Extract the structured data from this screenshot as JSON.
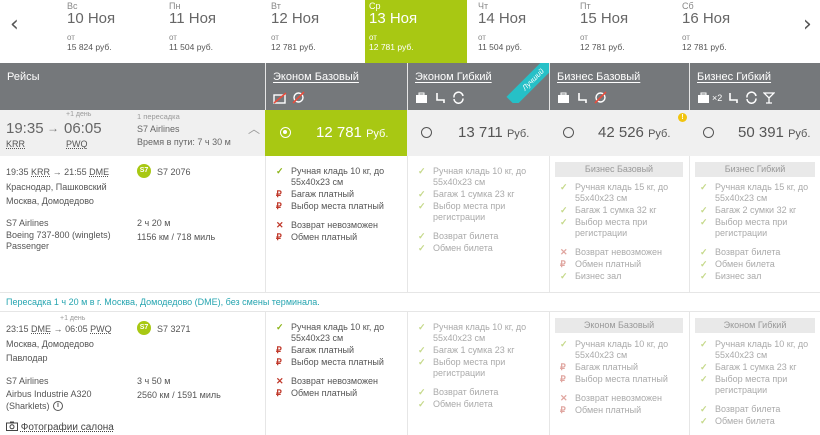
{
  "date_nav": {
    "days": [
      {
        "weekday": "Вс",
        "date": "10 Ноя",
        "from": "от",
        "price": "15 824 руб."
      },
      {
        "weekday": "Пн",
        "date": "11 Ноя",
        "from": "от",
        "price": "11 504 руб."
      },
      {
        "weekday": "Вт",
        "date": "12 Ноя",
        "from": "от",
        "price": "12 781 руб."
      },
      {
        "weekday": "Ср",
        "date": "13 Ноя",
        "from": "от",
        "price": "12 781 руб.",
        "selected": true
      },
      {
        "weekday": "Чт",
        "date": "14 Ноя",
        "from": "от",
        "price": "11 504 руб."
      },
      {
        "weekday": "Пт",
        "date": "15 Ноя",
        "from": "от",
        "price": "12 781 руб."
      },
      {
        "weekday": "Сб",
        "date": "16 Ноя",
        "from": "от",
        "price": "12 781 руб."
      }
    ],
    "prev_icon": "chevron-left-icon",
    "next_icon": "chevron-right-icon"
  },
  "header": {
    "flights": "Рейсы",
    "fares": [
      "Эконом Базовый",
      "Эконом Гибкий",
      "Бизнес Базовый",
      "Бизнес Гибкий"
    ],
    "best_badge": "Лучший",
    "baggage_count": "×2"
  },
  "flight": {
    "dep_time": "19:35",
    "arr_time": "06:05",
    "next_day": "+1 день",
    "dep_code": "KRR",
    "arr_code": "PWQ",
    "stops": "1 пересадка",
    "airline": "S7 Airlines",
    "total_duration": "Время в пути: 7 ч 30 м",
    "total_duration_short": "7 ч 30 м",
    "prices": [
      {
        "value": "12 781",
        "currency": "Руб."
      },
      {
        "value": "13 711",
        "currency": "Руб."
      },
      {
        "value": "42 526",
        "currency": "Руб."
      },
      {
        "value": "50 391",
        "currency": "Руб."
      }
    ],
    "segments": [
      {
        "dep_time": "19:35",
        "dep_code": "KRR",
        "arr_time": "21:55",
        "arr_code": "DME",
        "next_day": "",
        "flight_no": "S7 2076",
        "dep_city": "Краснодар, Пашковский",
        "arr_city": "Москва, Домодедово",
        "airline": "S7 Airlines",
        "aircraft": "Boeing 737-800 (winglets) Passenger",
        "duration": "2 ч 20 м",
        "distance": "1156 км / 718 миль"
      },
      {
        "dep_time": "23:15",
        "dep_code": "DME",
        "arr_time": "06:05",
        "arr_code": "PWQ",
        "next_day": "+1 день",
        "flight_no": "S7 3271",
        "dep_city": "Москва, Домодедово",
        "arr_city": "Павлодар",
        "airline": "S7 Airlines",
        "aircraft": "Airbus Industrie A320 (Sharklets)",
        "duration": "3 ч 50 м",
        "distance": "2560 км / 1591 миль"
      }
    ],
    "transfer_note": "Пересадка 1 ч 20 м в г. Москва, Домодедово (DME), без смены терминала.",
    "cabin_photos": "Фотографии салона"
  },
  "features": {
    "eco_basic": [
      "Ручная кладь 10 кг, до 55x40x23 см",
      "Багаж платный",
      "Выбор места платный",
      "Возврат невозможен",
      "Обмен платный"
    ],
    "eco_flex": [
      "Ручная кладь 10 кг, до 55x40x23 см",
      "Багаж 1 сумка 23 кг",
      "Выбор места при регистрации",
      "Возврат билета",
      "Обмен билета"
    ],
    "biz_basic": [
      "Ручная кладь 15 кг, до 55x40x23 см",
      "Багаж 1 сумка 32 кг",
      "Выбор места при регистрации",
      "Возврат невозможен",
      "Обмен платный",
      "Бизнес зал"
    ],
    "biz_flex": [
      "Ручная кладь 15 кг, до 55x40x23 см",
      "Багаж 2 сумки 32 кг",
      "Выбор места при регистрации",
      "Возврат билета",
      "Обмен билета",
      "Бизнес зал"
    ],
    "seg2_eco_flex": [
      "Ручная кладь 10 кг, до 55x40x23 см",
      "Багаж 1 сумка 23 кг",
      "Выбор места при регистрации",
      "Возврат билета",
      "Обмен билета"
    ],
    "seg2_sub_basic": "Эконом Базовый",
    "seg2_sub_flex": "Эконом Гибкий",
    "seg1_sub_biz_basic": "Бизнес Базовый",
    "seg1_sub_biz_flex": "Бизнес Гибкий",
    "seg2_biz_basic": [
      "Ручная кладь 10 кг, до 55x40x23 см",
      "Багаж платный",
      "Выбор места платный",
      "Возврат невозможен",
      "Обмен платный"
    ],
    "seg2_biz_flex": [
      "Ручная кладь 10 кг, до 55x40x23 см",
      "Багаж 1 сумка 23 кг",
      "Выбор места при регистрации",
      "Возврат билета",
      "Обмен билета"
    ]
  },
  "colors": {
    "accent": "#a8c813",
    "header": "#75787b",
    "teal": "#26c0c7",
    "red": "#c0392b"
  }
}
